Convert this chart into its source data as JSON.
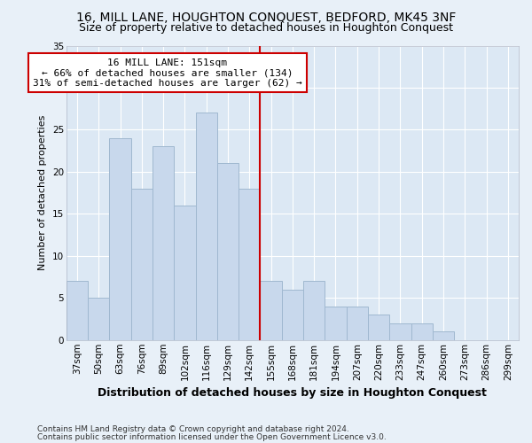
{
  "title": "16, MILL LANE, HOUGHTON CONQUEST, BEDFORD, MK45 3NF",
  "subtitle": "Size of property relative to detached houses in Houghton Conquest",
  "xlabel": "Distribution of detached houses by size in Houghton Conquest",
  "ylabel": "Number of detached properties",
  "bar_labels": [
    "37sqm",
    "50sqm",
    "63sqm",
    "76sqm",
    "89sqm",
    "102sqm",
    "116sqm",
    "129sqm",
    "142sqm",
    "155sqm",
    "168sqm",
    "181sqm",
    "194sqm",
    "207sqm",
    "220sqm",
    "233sqm",
    "247sqm",
    "260sqm",
    "273sqm",
    "286sqm",
    "299sqm"
  ],
  "bar_values": [
    7,
    5,
    24,
    18,
    23,
    16,
    27,
    21,
    18,
    7,
    6,
    7,
    4,
    4,
    3,
    2,
    2,
    1,
    0,
    0,
    0
  ],
  "bar_color": "#c8d8ec",
  "bar_edge_color": "#a0b8d0",
  "property_line_color": "#cc0000",
  "property_line_x": 8.5,
  "annotation_text": "16 MILL LANE: 151sqm\n← 66% of detached houses are smaller (134)\n31% of semi-detached houses are larger (62) →",
  "annotation_box_color": "#ffffff",
  "annotation_box_edge_color": "#cc0000",
  "ylim": [
    0,
    35
  ],
  "yticks": [
    0,
    5,
    10,
    15,
    20,
    25,
    30,
    35
  ],
  "background_color": "#e8f0f8",
  "plot_background_color": "#dce8f4",
  "grid_color": "#ffffff",
  "footer_line1": "Contains HM Land Registry data © Crown copyright and database right 2024.",
  "footer_line2": "Contains public sector information licensed under the Open Government Licence v3.0.",
  "title_fontsize": 10,
  "subtitle_fontsize": 9,
  "xlabel_fontsize": 9,
  "ylabel_fontsize": 8,
  "tick_fontsize": 7.5,
  "annotation_fontsize": 8,
  "footer_fontsize": 6.5
}
